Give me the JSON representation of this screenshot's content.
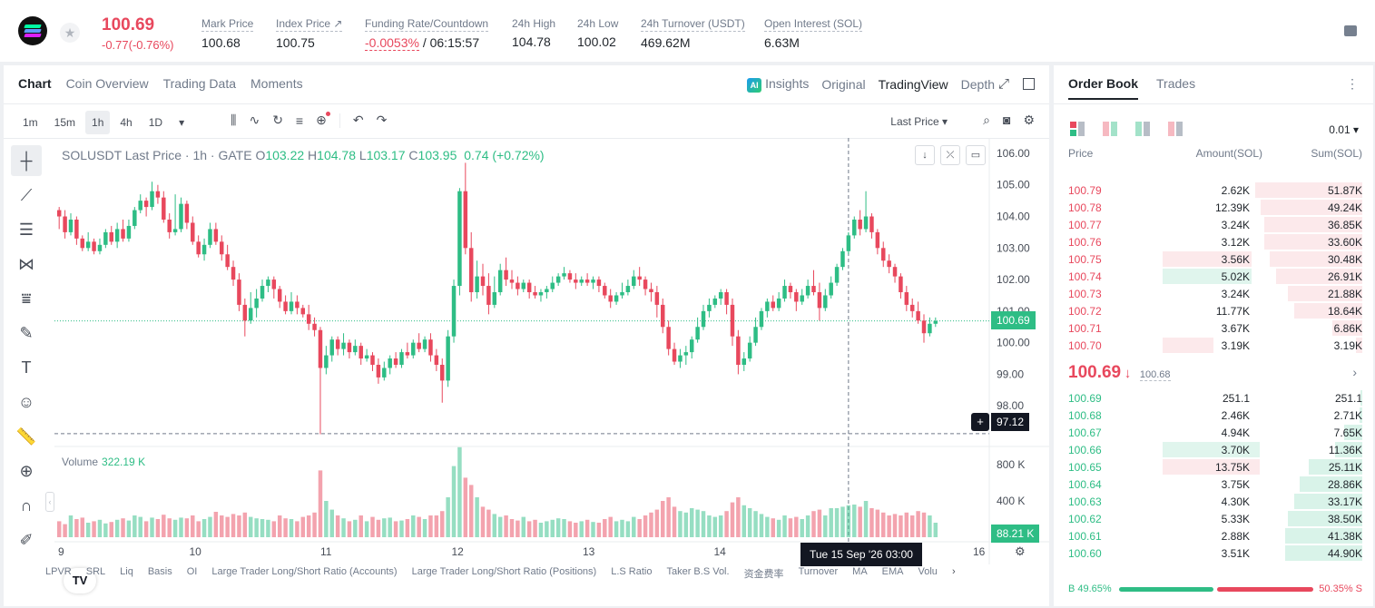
{
  "header": {
    "price": "100.69",
    "change": "-0.77(-0.76%)",
    "stats": [
      {
        "label": "Mark Price",
        "value": "100.68"
      },
      {
        "label": "Index Price ↗",
        "value": "100.75"
      },
      {
        "label": "Funding Rate/Countdown",
        "value": "-0.0053%",
        "value2": " / 06:15:57"
      },
      {
        "label": "24h High",
        "value": "104.78"
      },
      {
        "label": "24h Low",
        "value": "100.02"
      },
      {
        "label": "24h Turnover (USDT)",
        "value": "469.62M"
      },
      {
        "label": "Open Interest (SOL)",
        "value": "6.63M"
      }
    ]
  },
  "tabs": [
    "Chart",
    "Coin Overview",
    "Trading Data",
    "Moments"
  ],
  "views": {
    "insights": "Insights",
    "original": "Original",
    "tradingview": "TradingView",
    "depth": "Depth",
    "ai_badge": "AI"
  },
  "timeframes": [
    "1m",
    "15m",
    "1h",
    "4h",
    "1D"
  ],
  "last_price_label": "Last Price",
  "legend": {
    "symbol": "SOLUSDT Last Price · 1h · GATE",
    "o": "103.22",
    "h": "104.78",
    "l": "103.17",
    "c": "103.95",
    "chg": "0.74 (+0.72%)"
  },
  "volume": {
    "label": "Volume",
    "value": "322.19 K",
    "tag": "88.21 K"
  },
  "price_tag": "100.69",
  "cross_tag": "97.12",
  "date_tip": "Tue 15 Sep '26   03:00",
  "indicators": [
    "LPVR",
    "SRL",
    "Liq",
    "Basis",
    "OI",
    "Large Trader Long/Short Ratio (Accounts)",
    "Large Trader Long/Short Ratio (Positions)",
    "L.S Ratio",
    "Taker B.S Vol.",
    "资金费率",
    "Turnover",
    "MA",
    "EMA",
    "Volu"
  ],
  "colors": {
    "up": "#2ebd85",
    "down": "#e8485d"
  },
  "chart_data": {
    "type": "candlestick",
    "yTicks": [
      "106.00",
      "105.00",
      "104.00",
      "103.00",
      "102.00",
      "101.00",
      "100.00",
      "99.00",
      "98.00"
    ],
    "yRange": [
      97.0,
      106.2
    ],
    "volTicks": [
      "800 K",
      "400 K"
    ],
    "volRange": [
      0,
      1000
    ],
    "xTicks": [
      "9",
      "10",
      "11",
      "12",
      "13",
      "14",
      "16"
    ],
    "candles": [
      [
        104.2,
        104.0,
        104.3,
        103.6,
        0.22
      ],
      [
        104.0,
        103.5,
        104.2,
        103.3,
        0.18
      ],
      [
        103.5,
        103.9,
        104.1,
        103.4,
        0.3
      ],
      [
        103.9,
        103.3,
        104.0,
        103.1,
        0.25
      ],
      [
        103.3,
        103.0,
        103.4,
        102.9,
        0.27
      ],
      [
        103.0,
        103.2,
        103.5,
        102.9,
        0.2
      ],
      [
        103.2,
        102.9,
        103.3,
        102.8,
        0.22
      ],
      [
        102.9,
        103.1,
        103.3,
        102.8,
        0.24
      ],
      [
        103.1,
        103.5,
        103.6,
        103.0,
        0.19
      ],
      [
        103.5,
        103.2,
        103.7,
        103.1,
        0.21
      ],
      [
        103.2,
        103.6,
        103.8,
        103.0,
        0.24
      ],
      [
        103.6,
        103.3,
        103.9,
        103.2,
        0.26
      ],
      [
        103.3,
        103.7,
        103.9,
        103.2,
        0.23
      ],
      [
        103.7,
        104.2,
        104.3,
        103.6,
        0.3
      ],
      [
        104.2,
        104.5,
        104.7,
        104.1,
        0.28
      ],
      [
        104.5,
        104.3,
        104.6,
        104.0,
        0.22
      ],
      [
        104.3,
        104.8,
        105.1,
        104.2,
        0.27
      ],
      [
        104.8,
        104.6,
        105.0,
        104.4,
        0.25
      ],
      [
        104.6,
        103.9,
        104.8,
        103.8,
        0.31
      ],
      [
        103.9,
        103.5,
        104.1,
        103.3,
        0.26
      ],
      [
        103.5,
        103.6,
        104.7,
        103.4,
        0.24
      ],
      [
        103.6,
        104.4,
        104.6,
        103.5,
        0.27
      ],
      [
        104.4,
        103.8,
        104.5,
        103.6,
        0.26
      ],
      [
        103.8,
        103.2,
        104.0,
        103.1,
        0.3
      ],
      [
        103.2,
        102.8,
        103.4,
        102.7,
        0.22
      ],
      [
        102.8,
        103.1,
        103.3,
        102.6,
        0.25
      ],
      [
        103.1,
        103.6,
        103.8,
        103.0,
        0.28
      ],
      [
        103.6,
        103.2,
        103.8,
        103.1,
        0.35
      ],
      [
        103.2,
        102.8,
        103.4,
        102.6,
        0.3
      ],
      [
        102.8,
        102.4,
        103.1,
        102.3,
        0.28
      ],
      [
        102.4,
        102.0,
        102.6,
        101.8,
        0.32
      ],
      [
        102.0,
        101.2,
        102.2,
        101.0,
        0.3
      ],
      [
        101.2,
        100.7,
        101.4,
        100.2,
        0.34
      ],
      [
        100.7,
        101.1,
        101.6,
        100.6,
        0.28
      ],
      [
        101.1,
        101.4,
        101.7,
        100.8,
        0.26
      ],
      [
        101.4,
        101.8,
        102.0,
        101.3,
        0.25
      ],
      [
        101.8,
        102.0,
        102.1,
        101.6,
        0.24
      ],
      [
        102.0,
        101.7,
        102.1,
        101.4,
        0.22
      ],
      [
        101.7,
        101.3,
        101.8,
        101.1,
        0.3
      ],
      [
        101.3,
        101.0,
        101.5,
        100.9,
        0.26
      ],
      [
        101.0,
        101.3,
        101.6,
        100.9,
        0.25
      ],
      [
        101.3,
        101.1,
        101.5,
        100.9,
        0.22
      ],
      [
        101.1,
        100.9,
        101.2,
        100.8,
        0.28
      ],
      [
        100.9,
        100.6,
        101.2,
        100.4,
        0.3
      ],
      [
        100.6,
        100.4,
        100.8,
        100.2,
        0.34
      ],
      [
        100.4,
        99.2,
        100.5,
        97.1,
        0.92
      ],
      [
        99.2,
        99.6,
        99.9,
        99.0,
        0.5
      ],
      [
        99.6,
        100.1,
        100.2,
        99.4,
        0.38
      ],
      [
        100.1,
        99.8,
        100.2,
        99.6,
        0.3
      ],
      [
        99.8,
        100.0,
        100.3,
        99.6,
        0.26
      ],
      [
        100.0,
        99.7,
        100.1,
        99.5,
        0.22
      ],
      [
        99.7,
        99.9,
        100.1,
        99.6,
        0.24
      ],
      [
        99.9,
        99.5,
        100.0,
        99.3,
        0.3
      ],
      [
        99.5,
        99.6,
        99.8,
        99.4,
        0.22
      ],
      [
        99.6,
        99.3,
        99.7,
        99.1,
        0.28
      ],
      [
        99.3,
        98.9,
        99.5,
        98.7,
        0.24
      ],
      [
        98.9,
        99.2,
        99.4,
        98.8,
        0.26
      ],
      [
        99.2,
        99.5,
        99.6,
        99.0,
        0.27
      ],
      [
        99.5,
        99.3,
        99.7,
        99.2,
        0.22
      ],
      [
        99.3,
        99.7,
        99.8,
        99.2,
        0.23
      ],
      [
        99.7,
        99.6,
        100.0,
        99.5,
        0.25
      ],
      [
        99.6,
        100.0,
        100.1,
        99.5,
        0.3
      ],
      [
        100.0,
        99.8,
        100.3,
        99.7,
        0.28
      ],
      [
        99.8,
        100.1,
        100.2,
        99.7,
        0.25
      ],
      [
        100.1,
        99.6,
        100.3,
        99.4,
        0.3
      ],
      [
        99.6,
        99.3,
        99.8,
        99.1,
        0.3
      ],
      [
        99.3,
        98.8,
        99.5,
        98.1,
        0.36
      ],
      [
        98.8,
        100.2,
        100.4,
        98.6,
        0.55
      ],
      [
        100.2,
        101.8,
        102.0,
        100.0,
        0.98
      ],
      [
        101.8,
        104.8,
        104.9,
        101.5,
        1.24
      ],
      [
        104.8,
        103.0,
        105.7,
        102.8,
        0.82
      ],
      [
        103.0,
        101.6,
        103.5,
        101.3,
        0.72
      ],
      [
        101.6,
        102.1,
        102.6,
        101.4,
        0.55
      ],
      [
        102.1,
        101.8,
        102.5,
        101.5,
        0.42
      ],
      [
        101.8,
        101.2,
        102.2,
        100.9,
        0.38
      ],
      [
        101.2,
        101.6,
        102.1,
        101.1,
        0.32
      ],
      [
        101.6,
        102.3,
        102.5,
        101.5,
        0.28
      ],
      [
        102.3,
        102.0,
        102.7,
        101.8,
        0.3
      ],
      [
        102.0,
        101.9,
        102.3,
        101.7,
        0.25
      ],
      [
        101.9,
        101.7,
        102.1,
        101.5,
        0.23
      ],
      [
        101.7,
        101.9,
        102.0,
        101.6,
        0.28
      ],
      [
        101.9,
        101.6,
        102.0,
        101.4,
        0.22
      ],
      [
        101.6,
        101.5,
        101.8,
        101.4,
        0.24
      ],
      [
        101.5,
        101.6,
        101.7,
        101.3,
        0.2
      ],
      [
        101.6,
        101.7,
        101.8,
        101.4,
        0.22
      ],
      [
        101.7,
        101.9,
        102.1,
        101.6,
        0.24
      ],
      [
        101.9,
        102.1,
        102.2,
        101.8,
        0.26
      ],
      [
        102.1,
        102.2,
        102.4,
        102.0,
        0.25
      ],
      [
        102.2,
        102.0,
        102.3,
        101.9,
        0.22
      ],
      [
        102.0,
        101.9,
        102.2,
        101.7,
        0.2
      ],
      [
        101.9,
        102.0,
        102.1,
        101.8,
        0.22
      ],
      [
        102.0,
        101.9,
        102.2,
        101.8,
        0.24
      ],
      [
        101.9,
        102.0,
        102.1,
        101.7,
        0.21
      ],
      [
        102.0,
        101.8,
        102.1,
        101.6,
        0.2
      ],
      [
        101.8,
        101.5,
        101.9,
        101.4,
        0.25
      ],
      [
        101.5,
        101.3,
        101.7,
        101.1,
        0.28
      ],
      [
        101.3,
        101.5,
        101.6,
        101.2,
        0.22
      ],
      [
        101.5,
        101.6,
        101.9,
        101.4,
        0.24
      ],
      [
        101.6,
        101.8,
        102.0,
        101.5,
        0.22
      ],
      [
        101.8,
        102.1,
        102.3,
        101.7,
        0.28
      ],
      [
        102.1,
        102.0,
        102.4,
        101.8,
        0.25
      ],
      [
        102.0,
        101.7,
        102.1,
        101.5,
        0.3
      ],
      [
        101.7,
        101.6,
        101.9,
        101.3,
        0.34
      ],
      [
        101.6,
        101.2,
        101.8,
        100.8,
        0.38
      ],
      [
        101.2,
        100.5,
        101.4,
        100.3,
        0.5
      ],
      [
        100.5,
        99.8,
        100.7,
        99.6,
        0.55
      ],
      [
        99.8,
        99.4,
        100.0,
        99.3,
        0.42
      ],
      [
        99.4,
        99.6,
        99.8,
        99.2,
        0.36
      ],
      [
        99.6,
        99.7,
        99.9,
        99.3,
        0.34
      ],
      [
        99.7,
        100.1,
        100.2,
        99.5,
        0.4
      ],
      [
        100.1,
        100.5,
        100.8,
        100.0,
        0.38
      ],
      [
        100.5,
        101.0,
        101.2,
        100.4,
        0.36
      ],
      [
        101.0,
        101.2,
        101.4,
        100.8,
        0.3
      ],
      [
        101.2,
        101.4,
        101.5,
        101.1,
        0.28
      ],
      [
        101.4,
        101.6,
        101.7,
        101.2,
        0.3
      ],
      [
        101.6,
        101.2,
        101.7,
        100.9,
        0.36
      ],
      [
        101.2,
        100.2,
        101.4,
        99.9,
        0.48
      ],
      [
        100.2,
        99.3,
        100.4,
        99.0,
        0.55
      ],
      [
        99.3,
        99.5,
        99.7,
        99.1,
        0.44
      ],
      [
        99.5,
        100.0,
        100.2,
        99.4,
        0.4
      ],
      [
        100.0,
        100.5,
        100.8,
        99.9,
        0.36
      ],
      [
        100.5,
        101.0,
        101.1,
        100.4,
        0.32
      ],
      [
        101.0,
        101.3,
        101.4,
        100.8,
        0.28
      ],
      [
        101.3,
        101.1,
        101.5,
        101.0,
        0.26
      ],
      [
        101.1,
        101.4,
        101.6,
        101.0,
        0.24
      ],
      [
        101.4,
        101.8,
        102.0,
        101.3,
        0.3
      ],
      [
        101.8,
        101.6,
        101.9,
        101.4,
        0.26
      ],
      [
        101.6,
        101.3,
        101.7,
        101.0,
        0.28
      ],
      [
        101.3,
        101.5,
        101.7,
        101.2,
        0.25
      ],
      [
        101.5,
        101.8,
        102.0,
        101.4,
        0.3
      ],
      [
        101.8,
        101.6,
        102.3,
        101.5,
        0.36
      ],
      [
        101.6,
        101.1,
        101.9,
        100.7,
        0.38
      ],
      [
        101.1,
        101.5,
        101.7,
        101.0,
        0.3
      ],
      [
        101.5,
        101.9,
        102.1,
        101.4,
        0.4
      ],
      [
        101.9,
        102.4,
        102.5,
        101.8,
        0.4
      ],
      [
        102.4,
        102.9,
        103.0,
        102.3,
        0.42
      ],
      [
        102.9,
        103.4,
        103.5,
        102.8,
        0.44
      ],
      [
        103.4,
        103.9,
        104.0,
        103.3,
        0.45
      ],
      [
        103.9,
        103.6,
        104.2,
        103.4,
        0.42
      ],
      [
        103.6,
        104.0,
        104.8,
        103.5,
        0.5
      ],
      [
        104.0,
        103.5,
        104.1,
        103.3,
        0.4
      ],
      [
        103.5,
        103.0,
        103.6,
        102.8,
        0.38
      ],
      [
        103.0,
        102.6,
        103.2,
        102.4,
        0.34
      ],
      [
        102.6,
        102.4,
        102.8,
        102.2,
        0.3
      ],
      [
        102.4,
        102.1,
        102.5,
        101.9,
        0.32
      ],
      [
        102.1,
        101.6,
        102.2,
        101.4,
        0.3
      ],
      [
        101.6,
        101.2,
        101.8,
        101.0,
        0.34
      ],
      [
        101.2,
        101.0,
        101.4,
        100.8,
        0.3
      ],
      [
        101.0,
        100.7,
        101.3,
        100.6,
        0.36
      ],
      [
        100.7,
        100.3,
        100.9,
        100.0,
        0.34
      ],
      [
        100.3,
        100.6,
        100.8,
        100.2,
        0.3
      ],
      [
        100.6,
        100.69,
        100.8,
        100.5,
        0.2
      ]
    ]
  },
  "orderbook": {
    "tabs": [
      "Order Book",
      "Trades"
    ],
    "precision": "0.01",
    "headers": {
      "price": "Price",
      "amount": "Amount(SOL)",
      "sum": "Sum(SOL)"
    },
    "asks": [
      {
        "price": "100.79",
        "amount": "2.62K",
        "sum": "51.87K",
        "depth": 0.36,
        "amt": 0
      },
      {
        "price": "100.78",
        "amount": "12.39K",
        "sum": "49.24K",
        "depth": 0.34,
        "amt": 0
      },
      {
        "price": "100.77",
        "amount": "3.24K",
        "sum": "36.85K",
        "depth": 0.33,
        "amt": 0
      },
      {
        "price": "100.76",
        "amount": "3.12K",
        "sum": "33.60K",
        "depth": 0.33,
        "amt": 0
      },
      {
        "price": "100.75",
        "amount": "3.56K",
        "sum": "30.48K",
        "depth": 0.31,
        "amt": 0.65
      },
      {
        "price": "100.74",
        "amount": "5.02K",
        "sum": "26.91K",
        "depth": 0.29,
        "amt": 0.65,
        "green": true
      },
      {
        "price": "100.73",
        "amount": "3.24K",
        "sum": "21.88K",
        "depth": 0.25,
        "amt": 0
      },
      {
        "price": "100.72",
        "amount": "11.77K",
        "sum": "18.64K",
        "depth": 0.23,
        "amt": 0
      },
      {
        "price": "100.71",
        "amount": "3.67K",
        "sum": "6.86K",
        "depth": 0.1,
        "amt": 0
      },
      {
        "price": "100.70",
        "amount": "3.19K",
        "sum": "3.19K",
        "depth": 0.02,
        "amt": 0.37
      }
    ],
    "mid": {
      "price": "100.69",
      "arrow": "↓",
      "mark": "100.68"
    },
    "bids": [
      {
        "price": "100.69",
        "amount": "251.1",
        "sum": "251.1",
        "depth": 0.005,
        "amt": 0
      },
      {
        "price": "100.68",
        "amount": "2.46K",
        "sum": "2.71K",
        "depth": 0.01,
        "amt": 0
      },
      {
        "price": "100.67",
        "amount": "4.94K",
        "sum": "7.65K",
        "depth": 0.06,
        "amt": 0
      },
      {
        "price": "100.66",
        "amount": "3.70K",
        "sum": "11.36K",
        "depth": 0.09,
        "amt": 0.71,
        "green": true
      },
      {
        "price": "100.65",
        "amount": "13.75K",
        "sum": "25.11K",
        "depth": 0.18,
        "amt": 0.71,
        "red": true
      },
      {
        "price": "100.64",
        "amount": "3.75K",
        "sum": "28.86K",
        "depth": 0.21,
        "amt": 0
      },
      {
        "price": "100.63",
        "amount": "4.30K",
        "sum": "33.17K",
        "depth": 0.23,
        "amt": 0
      },
      {
        "price": "100.62",
        "amount": "5.33K",
        "sum": "38.50K",
        "depth": 0.25,
        "amt": 0
      },
      {
        "price": "100.61",
        "amount": "2.88K",
        "sum": "41.38K",
        "depth": 0.26,
        "amt": 0
      },
      {
        "price": "100.60",
        "amount": "3.51K",
        "sum": "44.90K",
        "depth": 0.26,
        "amt": 0
      }
    ],
    "ratio": {
      "buy": "B 49.65%",
      "sell": "50.35% S"
    }
  }
}
